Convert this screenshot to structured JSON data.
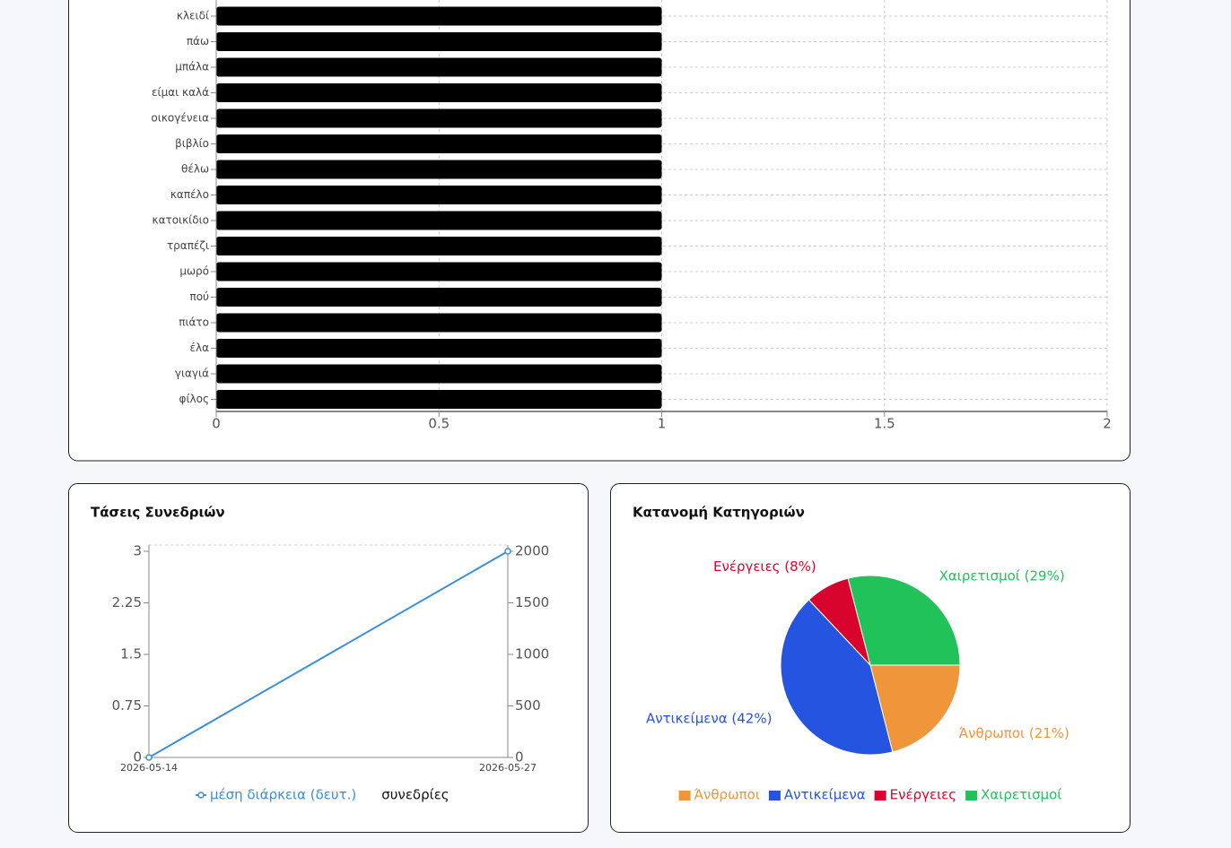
{
  "chart_data": [
    {
      "type": "bar",
      "orientation": "horizontal",
      "categories": [
        "κλειδί",
        "πάω",
        "μπάλα",
        "είμαι καλά",
        "οικογένεια",
        "βιβλίο",
        "θέλω",
        "καπέλο",
        "κατοικίδιο",
        "τραπέζι",
        "μωρό",
        "πού",
        "πιάτο",
        "έλα",
        "γιαγιά",
        "φίλος"
      ],
      "values": [
        1,
        1,
        1,
        1,
        1,
        1,
        1,
        1,
        1,
        1,
        1,
        1,
        1,
        1,
        1,
        1
      ],
      "color": "#000000",
      "xlim": [
        0,
        2
      ],
      "xticks": [
        0,
        0.5,
        1,
        1.5,
        2
      ],
      "grid": true
    },
    {
      "type": "line",
      "title": "Τάσεις Συνεδριών",
      "categories": [
        "2026-05-14",
        "2026-05-27"
      ],
      "series": [
        {
          "name": "μέση διάρκεια (δευτ.)",
          "color": "#3b8fd9",
          "values": [
            0,
            3
          ]
        },
        {
          "name": "συνεδρίες",
          "values": [
            0,
            0
          ],
          "axis": "y2"
        }
      ],
      "ylim": [
        0,
        3
      ],
      "yticks": [
        0,
        0.75,
        1.5,
        2.25,
        3
      ],
      "y2lim": [
        0,
        2000
      ],
      "y2ticks": [
        0,
        500,
        1000,
        1500,
        2000
      ],
      "legend": "bottom"
    },
    {
      "type": "pie",
      "title": "Κατανομή Κατηγοριών",
      "categories": [
        "Άνθρωποι",
        "Αντικείμενα",
        "Ενέργειες",
        "Χαιρετισμοί"
      ],
      "values": [
        21,
        42,
        8,
        29
      ],
      "value_labels": [
        "Άνθρωποι (21%)",
        "Αντικείμενα (42%)",
        "Ενέργειες (8%)",
        "Χαιρετισμοί (29%)"
      ],
      "colors": [
        "#f0963a",
        "#2454e0",
        "#d9042e",
        "#22c25a"
      ],
      "legend": "bottom"
    }
  ]
}
